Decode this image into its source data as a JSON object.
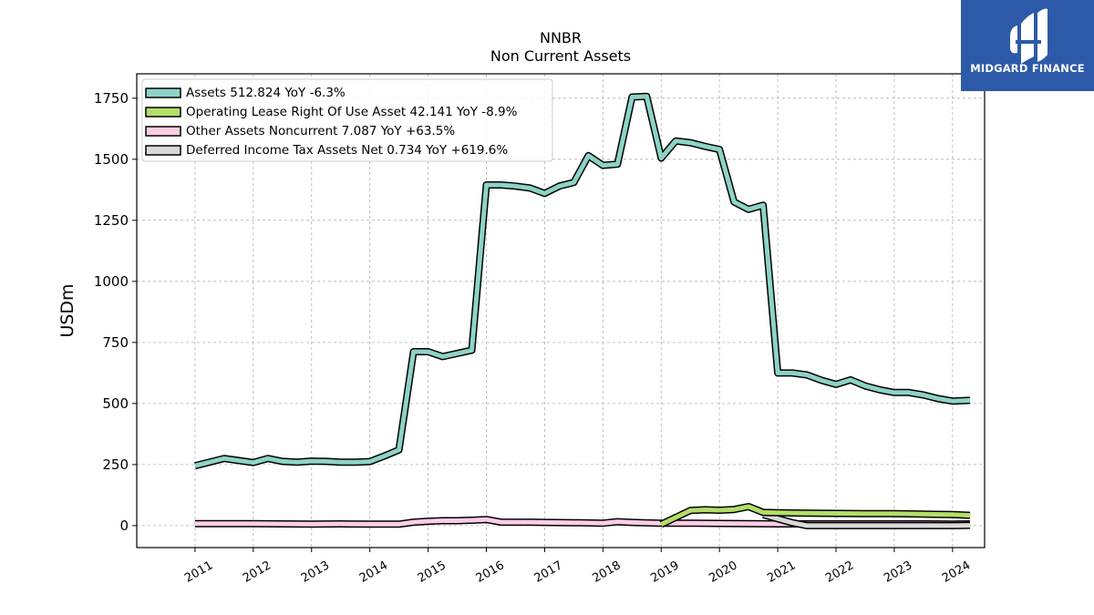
{
  "chart_data": {
    "type": "line",
    "title": "NNBR",
    "subtitle": "Non Current  Assets",
    "ylabel": "USDm",
    "xlabel": "",
    "ylim": [
      -90,
      1850
    ],
    "xlim": [
      2010.0,
      2024.55
    ],
    "yticks": [
      0,
      250,
      500,
      750,
      1000,
      1250,
      1500,
      1750
    ],
    "xticks": [
      "2011",
      "2012",
      "2013",
      "2014",
      "2015",
      "2016",
      "2017",
      "2018",
      "2019",
      "2020",
      "2021",
      "2022",
      "2023",
      "2024"
    ],
    "grid": true,
    "legend_position": "top-left",
    "series": [
      {
        "name": "Assets  512.824 YoY -6.3%",
        "color": "#8dd3c7",
        "x": [
          2011.0,
          2011.5,
          2012.0,
          2012.25,
          2012.5,
          2012.75,
          2013.0,
          2013.25,
          2013.5,
          2013.75,
          2014.0,
          2014.25,
          2014.5,
          2014.75,
          2015.0,
          2015.25,
          2015.5,
          2015.75,
          2016.0,
          2016.25,
          2016.5,
          2016.75,
          2017.0,
          2017.25,
          2017.5,
          2017.75,
          2018.0,
          2018.25,
          2018.5,
          2018.75,
          2019.0,
          2019.25,
          2019.5,
          2019.75,
          2020.0,
          2020.25,
          2020.5,
          2020.75,
          2021.0,
          2021.25,
          2021.5,
          2021.75,
          2022.0,
          2022.25,
          2022.5,
          2022.75,
          2023.0,
          2023.25,
          2023.5,
          2023.75,
          2024.0,
          2024.3
        ],
        "values": [
          245,
          275,
          258,
          275,
          263,
          260,
          264,
          263,
          260,
          260,
          262,
          285,
          310,
          712,
          712,
          692,
          705,
          718,
          1395,
          1395,
          1390,
          1382,
          1360,
          1390,
          1405,
          1515,
          1475,
          1480,
          1755,
          1758,
          1505,
          1575,
          1568,
          1553,
          1540,
          1325,
          1295,
          1312,
          625,
          625,
          617,
          595,
          578,
          597,
          572,
          556,
          545,
          545,
          535,
          520,
          510,
          513
        ]
      },
      {
        "name": "Operating Lease Right Of Use Asset  42.141 YoY -8.9%",
        "color": "#b3de69",
        "x": [
          2019.0,
          2019.5,
          2019.75,
          2020.0,
          2020.25,
          2020.5,
          2020.75,
          2021.0,
          2021.5,
          2022.0,
          2022.5,
          2023.0,
          2023.5,
          2024.0,
          2024.3
        ],
        "values": [
          5,
          62,
          65,
          63,
          66,
          78,
          54,
          53,
          51,
          50,
          49,
          49,
          47,
          45,
          42
        ]
      },
      {
        "name": "Other Assets Noncurrent  7.087 YoY +63.5%",
        "color": "#fccde5",
        "x": [
          2011.0,
          2011.5,
          2012.0,
          2012.5,
          2013.0,
          2013.5,
          2014.0,
          2014.5,
          2014.75,
          2015.0,
          2015.25,
          2015.5,
          2015.75,
          2016.0,
          2016.25,
          2016.5,
          2016.75,
          2017.0,
          2017.5,
          2018.0,
          2018.25,
          2018.5,
          2018.75,
          2019.0,
          2019.5,
          2020.0,
          2020.5,
          2021.0,
          2021.5,
          2022.0,
          2022.5,
          2023.0,
          2023.5,
          2024.0,
          2024.3
        ],
        "values": [
          8,
          8,
          8,
          7,
          6,
          7,
          6,
          6,
          14,
          18,
          20,
          20,
          22,
          25,
          14,
          14,
          14,
          13,
          12,
          10,
          16,
          13,
          11,
          10,
          10,
          9,
          8,
          7,
          7,
          7,
          7,
          7,
          7,
          6,
          7
        ]
      },
      {
        "name": "Deferred Income Tax Assets Net  0.734 YoY +619.6%",
        "color": "#d9d9d9",
        "x": [
          2020.75,
          2021.0,
          2021.25,
          2021.5,
          2022.0,
          2022.5,
          2023.0,
          2023.5,
          2024.0,
          2024.3
        ],
        "values": [
          45,
          28,
          12,
          0,
          0,
          0,
          0,
          0,
          0,
          1
        ]
      }
    ]
  },
  "logo": {
    "text": "MIDGARD FINANCE"
  }
}
